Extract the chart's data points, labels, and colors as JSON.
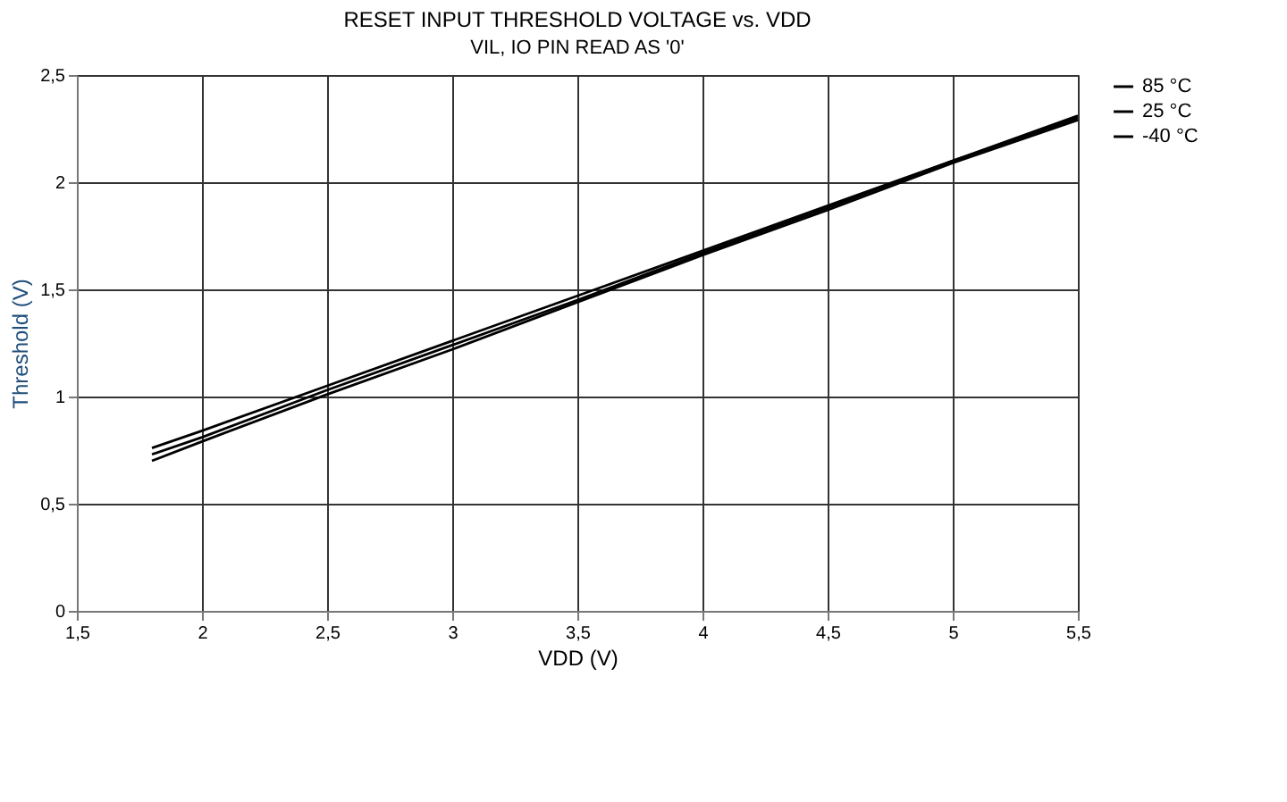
{
  "chart_data": {
    "type": "line",
    "title": "RESET INPUT THRESHOLD VOLTAGE vs. VDD",
    "subtitle": "VIL, IO PIN READ AS '0'",
    "xlabel": "VDD (V)",
    "ylabel": "Threshold (V)",
    "x": [
      1.8,
      2,
      2.5,
      3,
      3.5,
      4,
      4.5,
      5,
      5.5
    ],
    "series": [
      {
        "name": "85 °C",
        "color": "#000000",
        "values": [
          0.76,
          0.84,
          1.05,
          1.26,
          1.47,
          1.68,
          1.89,
          2.1,
          2.31
        ]
      },
      {
        "name": "25 °C",
        "color": "#000000",
        "values": [
          0.73,
          0.81,
          1.03,
          1.24,
          1.45,
          1.67,
          1.88,
          2.1,
          2.3
        ]
      },
      {
        "name": "-40 °C",
        "color": "#000000",
        "values": [
          0.7,
          0.79,
          1.01,
          1.22,
          1.44,
          1.66,
          1.87,
          2.09,
          2.29
        ]
      }
    ],
    "xlim": [
      1.5,
      5.5
    ],
    "xticks": [
      {
        "value": 1.5,
        "label": "1,5"
      },
      2,
      {
        "value": 2.5,
        "label": "2,5"
      },
      3,
      {
        "value": 3.5,
        "label": "3,5"
      },
      4,
      {
        "value": 4.5,
        "label": "4,5"
      },
      5,
      {
        "value": 5.5,
        "label": "5,5"
      }
    ],
    "ylim": [
      0,
      2.5
    ],
    "yticks": [
      0,
      {
        "value": 0.5,
        "label": "0,5"
      },
      1,
      {
        "value": 1.5,
        "label": "1,5"
      },
      2,
      {
        "value": 2.5,
        "label": "2,5"
      }
    ],
    "grid": true,
    "legend": "right",
    "marker": "none",
    "line_style": "solid"
  }
}
